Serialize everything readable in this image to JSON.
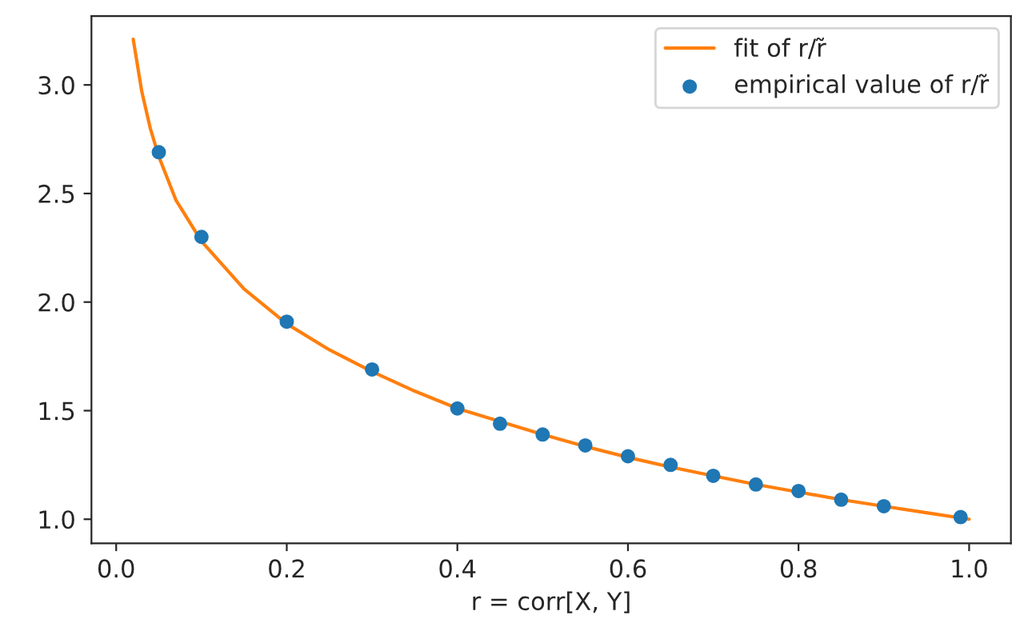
{
  "chart_data": {
    "type": "line",
    "xlabel": "r = corr[X, Y]",
    "xlim": [
      -0.029,
      1.049
    ],
    "ylim": [
      0.889,
      3.317
    ],
    "xticks": [
      {
        "value": 0,
        "label": "0.0"
      },
      {
        "value": 0.2,
        "label": "0.2"
      },
      {
        "value": 0.4,
        "label": "0.4"
      },
      {
        "value": 0.6,
        "label": "0.6"
      },
      {
        "value": 0.8,
        "label": "0.8"
      },
      {
        "value": 1,
        "label": "1.0"
      }
    ],
    "yticks": [
      {
        "value": 1,
        "label": "1.0"
      },
      {
        "value": 1.5,
        "label": "1.5"
      },
      {
        "value": 2,
        "label": "2.0"
      },
      {
        "value": 2.5,
        "label": "2.5"
      },
      {
        "value": 3,
        "label": "3.0"
      }
    ],
    "grid": false,
    "legend": "top right",
    "series": [
      {
        "name": "fit of r/r̃",
        "color": "#ff7f0e",
        "x": [
          0.02,
          0.03,
          0.04,
          0.05,
          0.07,
          0.1,
          0.15,
          0.2,
          0.25,
          0.3,
          0.35,
          0.4,
          0.45,
          0.5,
          0.55,
          0.6,
          0.65,
          0.7,
          0.75,
          0.8,
          0.85,
          0.9,
          0.95,
          1.0
        ],
        "values": [
          3.21,
          2.97,
          2.8,
          2.67,
          2.47,
          2.28,
          2.06,
          1.9,
          1.78,
          1.68,
          1.59,
          1.51,
          1.45,
          1.39,
          1.335,
          1.285,
          1.24,
          1.2,
          1.16,
          1.125,
          1.09,
          1.06,
          1.03,
          1.0
        ]
      },
      {
        "type": "scatter",
        "name": "empirical value of r/r̃",
        "color": "#1f77b4",
        "marker": "circle",
        "x": [
          0.05,
          0.1,
          0.2,
          0.3,
          0.4,
          0.45,
          0.5,
          0.55,
          0.6,
          0.65,
          0.7,
          0.75,
          0.8,
          0.85,
          0.9,
          0.99
        ],
        "values": [
          2.69,
          2.3,
          1.91,
          1.69,
          1.51,
          1.44,
          1.39,
          1.34,
          1.29,
          1.25,
          1.2,
          1.16,
          1.13,
          1.09,
          1.06,
          1.01
        ]
      }
    ]
  }
}
